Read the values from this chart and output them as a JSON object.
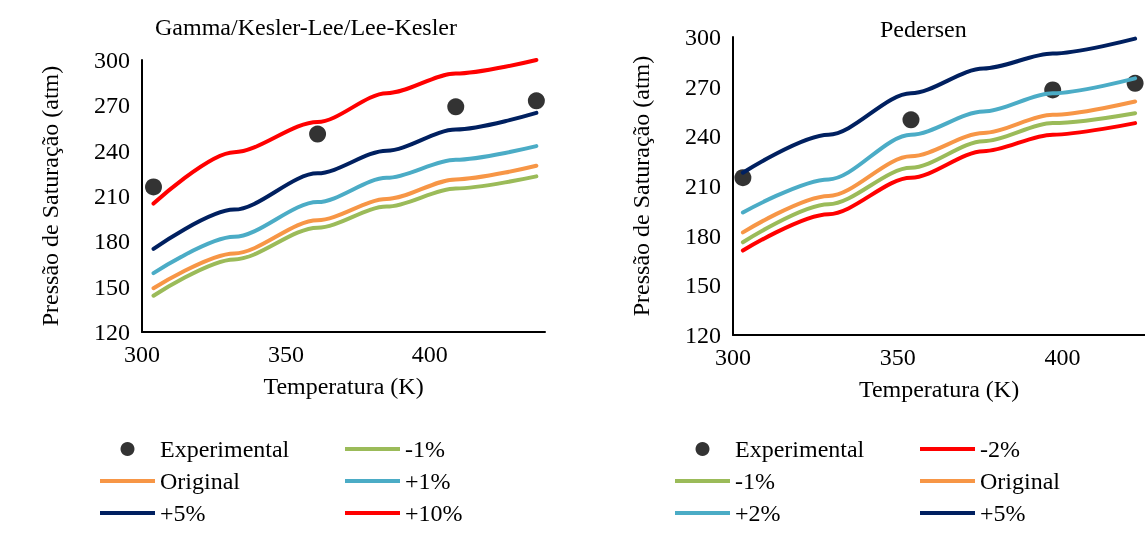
{
  "chart_data": [
    {
      "type": "line",
      "title": "Gamma/Kesler-Lee/Lee-Kesler",
      "xlabel": "Temperatura (K)",
      "ylabel": "Pressão de Saturação (atm)",
      "xlim": [
        300,
        440
      ],
      "xticks": [
        300,
        350,
        400
      ],
      "ylim": [
        120,
        300
      ],
      "yticks": [
        120,
        150,
        180,
        210,
        240,
        270,
        300
      ],
      "grid": false,
      "legend": "bottom",
      "line_style": "solid",
      "series": [
        {
          "name": "Experimental",
          "type": "scatter",
          "marker": "circle",
          "color": "#000000",
          "x": [
            304,
            361,
            409,
            437
          ],
          "values": [
            216,
            251,
            269,
            273
          ]
        },
        {
          "name": "-1%",
          "color": "#9bbb59",
          "x": [
            304,
            332,
            361,
            385,
            409,
            437
          ],
          "values": [
            144,
            168,
            189,
            203,
            215,
            223
          ]
        },
        {
          "name": "Original",
          "color": "#f79646",
          "x": [
            304,
            332,
            361,
            385,
            409,
            437
          ],
          "values": [
            149,
            172,
            194,
            208,
            221,
            230
          ]
        },
        {
          "name": "+1%",
          "color": "#4bacc6",
          "x": [
            304,
            332,
            361,
            385,
            409,
            437
          ],
          "values": [
            159,
            183,
            206,
            222,
            234,
            243
          ]
        },
        {
          "name": "+5%",
          "color": "#002060",
          "x": [
            304,
            332,
            361,
            385,
            409,
            437
          ],
          "values": [
            175,
            201,
            225,
            240,
            254,
            265
          ]
        },
        {
          "name": "+10%",
          "color": "#ff0000",
          "x": [
            304,
            332,
            361,
            385,
            409,
            437
          ],
          "values": [
            205,
            239,
            259,
            278,
            291,
            300
          ]
        }
      ]
    },
    {
      "type": "line",
      "title": "Pedersen",
      "xlabel": "Temperatura (K)",
      "ylabel": "Pressão de Saturação (atm)",
      "xlim": [
        300,
        425
      ],
      "xticks": [
        300,
        350,
        400
      ],
      "ylim": [
        120,
        300
      ],
      "yticks": [
        120,
        150,
        180,
        210,
        240,
        270,
        300
      ],
      "grid": false,
      "legend": "bottom",
      "line_style": "solid",
      "series": [
        {
          "name": "Experimental",
          "type": "scatter",
          "marker": "circle",
          "color": "#000000",
          "x": [
            303,
            354,
            397,
            422
          ],
          "values": [
            215,
            250,
            268,
            272
          ]
        },
        {
          "name": "-2%",
          "color": "#ff0000",
          "x": [
            303,
            329,
            354,
            376,
            397,
            422
          ],
          "values": [
            171,
            193,
            215,
            231,
            241,
            248
          ]
        },
        {
          "name": "-1%",
          "color": "#9bbb59",
          "x": [
            303,
            329,
            354,
            376,
            397,
            422
          ],
          "values": [
            176,
            199,
            221,
            237,
            248,
            254
          ]
        },
        {
          "name": "Original",
          "color": "#f79646",
          "x": [
            303,
            329,
            354,
            376,
            397,
            422
          ],
          "values": [
            182,
            204,
            228,
            242,
            253,
            261
          ]
        },
        {
          "name": "+2%",
          "color": "#4bacc6",
          "x": [
            303,
            329,
            354,
            376,
            397,
            422
          ],
          "values": [
            194,
            214,
            241,
            255,
            266,
            275
          ]
        },
        {
          "name": "+5%",
          "color": "#002060",
          "x": [
            303,
            329,
            354,
            376,
            397,
            422
          ],
          "values": [
            218,
            241,
            266,
            281,
            290,
            299
          ]
        }
      ]
    }
  ]
}
